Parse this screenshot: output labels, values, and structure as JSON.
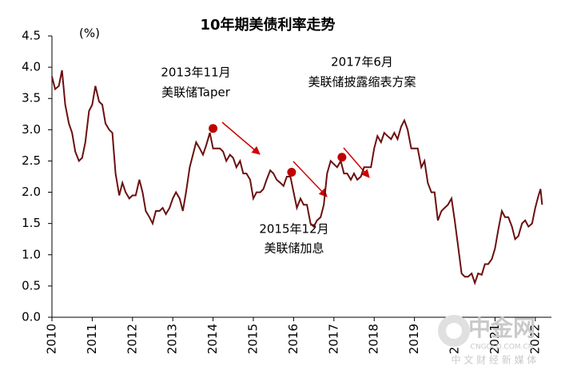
{
  "chart_data": {
    "type": "line",
    "title": "10年期美债利率走势",
    "y_unit": "(%)",
    "x": [
      2010,
      2010.08,
      2010.17,
      2010.25,
      2010.33,
      2010.42,
      2010.5,
      2010.58,
      2010.67,
      2010.75,
      2010.83,
      2010.92,
      2011,
      2011.08,
      2011.17,
      2011.25,
      2011.33,
      2011.42,
      2011.5,
      2011.58,
      2011.67,
      2011.75,
      2011.83,
      2011.92,
      2012,
      2012.08,
      2012.17,
      2012.25,
      2012.33,
      2012.42,
      2012.5,
      2012.58,
      2012.67,
      2012.75,
      2012.83,
      2012.92,
      2013,
      2013.08,
      2013.17,
      2013.25,
      2013.33,
      2013.42,
      2013.5,
      2013.58,
      2013.67,
      2013.75,
      2013.83,
      2013.92,
      2014,
      2014.08,
      2014.17,
      2014.25,
      2014.33,
      2014.42,
      2014.5,
      2014.58,
      2014.67,
      2014.75,
      2014.83,
      2014.92,
      2015,
      2015.08,
      2015.17,
      2015.25,
      2015.33,
      2015.42,
      2015.5,
      2015.58,
      2015.67,
      2015.75,
      2015.83,
      2015.92,
      2016,
      2016.08,
      2016.17,
      2016.25,
      2016.33,
      2016.42,
      2016.5,
      2016.58,
      2016.67,
      2016.75,
      2016.83,
      2016.92,
      2017,
      2017.08,
      2017.17,
      2017.25,
      2017.33,
      2017.42,
      2017.5,
      2017.58,
      2017.67,
      2017.75,
      2017.83,
      2017.92,
      2018,
      2018.08,
      2018.17,
      2018.25,
      2018.33,
      2018.42,
      2018.5,
      2018.58,
      2018.67,
      2018.75,
      2018.83,
      2018.92,
      2019,
      2019.08,
      2019.17,
      2019.25,
      2019.33,
      2019.42,
      2019.5,
      2019.58,
      2019.67,
      2019.75,
      2019.83,
      2019.92,
      2020,
      2020.08,
      2020.17,
      2020.25,
      2020.33,
      2020.42,
      2020.5,
      2020.58,
      2020.67,
      2020.75,
      2020.83,
      2020.92,
      2021,
      2021.08,
      2021.17,
      2021.25,
      2021.33,
      2021.42,
      2021.5,
      2021.58,
      2021.67,
      2021.75,
      2021.83,
      2021.92,
      2022,
      2022.08,
      2022.13,
      2022.17
    ],
    "series": [
      {
        "name": "10年期美债利率",
        "color": "#6b0f0f",
        "values": [
          3.85,
          3.65,
          3.7,
          3.95,
          3.4,
          3.1,
          2.95,
          2.65,
          2.5,
          2.55,
          2.8,
          3.3,
          3.4,
          3.7,
          3.45,
          3.4,
          3.1,
          3.0,
          2.95,
          2.3,
          1.95,
          2.15,
          2.0,
          1.9,
          1.95,
          1.95,
          2.2,
          2.0,
          1.7,
          1.6,
          1.5,
          1.7,
          1.7,
          1.75,
          1.65,
          1.75,
          1.9,
          2.0,
          1.9,
          1.7,
          2.0,
          2.4,
          2.6,
          2.8,
          2.7,
          2.6,
          2.75,
          2.95,
          2.7,
          2.7,
          2.7,
          2.65,
          2.5,
          2.6,
          2.55,
          2.4,
          2.5,
          2.3,
          2.3,
          2.2,
          1.9,
          2.0,
          2.0,
          2.05,
          2.2,
          2.35,
          2.3,
          2.2,
          2.15,
          2.1,
          2.25,
          2.25,
          2.0,
          1.75,
          1.9,
          1.8,
          1.8,
          1.5,
          1.45,
          1.55,
          1.6,
          1.8,
          2.3,
          2.5,
          2.45,
          2.4,
          2.5,
          2.3,
          2.3,
          2.2,
          2.3,
          2.2,
          2.25,
          2.4,
          2.4,
          2.4,
          2.7,
          2.9,
          2.8,
          2.95,
          2.9,
          2.85,
          2.95,
          2.85,
          3.05,
          3.15,
          3.0,
          2.7,
          2.7,
          2.7,
          2.4,
          2.5,
          2.15,
          2.0,
          2.0,
          1.55,
          1.7,
          1.75,
          1.8,
          1.9,
          1.55,
          1.15,
          0.7,
          0.65,
          0.65,
          0.7,
          0.55,
          0.7,
          0.68,
          0.85,
          0.85,
          0.93,
          1.1,
          1.4,
          1.7,
          1.6,
          1.6,
          1.45,
          1.25,
          1.3,
          1.5,
          1.55,
          1.45,
          1.5,
          1.75,
          1.95,
          2.05,
          1.8
        ]
      }
    ],
    "xlim": [
      2010,
      2022.4
    ],
    "xticks": [
      2010,
      2011,
      2012,
      2013,
      2014,
      2015,
      2016,
      2017,
      2018,
      2019,
      2020,
      2021,
      2022
    ],
    "ylim": [
      0,
      4.5
    ],
    "yticks": [
      {
        "value": 0,
        "label": "0.0"
      },
      0.5,
      {
        "value": 1,
        "label": "1.0"
      },
      1.5,
      {
        "value": 2,
        "label": "2.0"
      },
      2.5,
      {
        "value": 3,
        "label": "3.0"
      },
      3.5,
      {
        "value": 4,
        "label": "4.0"
      },
      4.5
    ],
    "annotations": [
      {
        "lines": [
          "2013年11月",
          "美联储Taper"
        ],
        "x": 2014.0,
        "y": 3.02,
        "color": "#c00000"
      },
      {
        "lines": [
          "2015年12月",
          "美联储加息"
        ],
        "x": 2015.95,
        "y": 2.32,
        "color": "#c00000"
      },
      {
        "lines": [
          "2017年6月",
          "美联储披露缩表方案"
        ],
        "x": 2017.2,
        "y": 2.56,
        "color": "#c00000"
      }
    ]
  },
  "watermark": {
    "logo": "中金网",
    "site": "CNGOLD.COM.CN",
    "slogan": "中 文 财 经 新 媒 体"
  }
}
